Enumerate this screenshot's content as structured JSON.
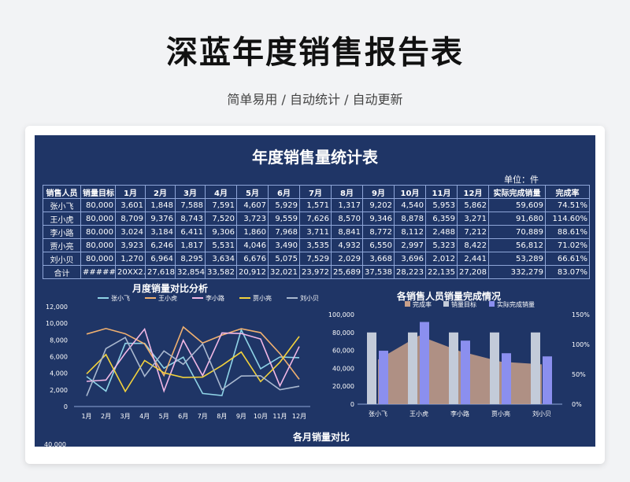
{
  "header": {
    "title": "深蓝年度销售报告表",
    "subtitle": "简单易用 / 自动统计 / 自动更新"
  },
  "sheet": {
    "title": "年度销售量统计表",
    "unit": "单位：件"
  },
  "table": {
    "headers": [
      "销售人员",
      "销量目标",
      "1月",
      "2月",
      "3月",
      "4月",
      "5月",
      "6月",
      "7月",
      "8月",
      "9月",
      "10月",
      "11月",
      "12月",
      "实际完成销量",
      "完成率"
    ],
    "rows": [
      [
        "张小飞",
        "80,000",
        "3,601",
        "1,848",
        "7,588",
        "7,591",
        "4,607",
        "5,929",
        "1,571",
        "1,317",
        "9,202",
        "4,540",
        "5,953",
        "5,862",
        "59,609",
        "74.51%"
      ],
      [
        "王小虎",
        "80,000",
        "8,709",
        "9,376",
        "8,743",
        "7,520",
        "3,723",
        "9,559",
        "7,626",
        "8,570",
        "9,346",
        "8,878",
        "6,359",
        "3,271",
        "91,680",
        "114.60%"
      ],
      [
        "李小路",
        "80,000",
        "3,024",
        "3,184",
        "6,411",
        "9,306",
        "1,860",
        "7,968",
        "3,711",
        "8,841",
        "8,772",
        "8,112",
        "2,488",
        "7,212",
        "70,889",
        "88.61%"
      ],
      [
        "贾小亮",
        "80,000",
        "3,923",
        "6,246",
        "1,817",
        "5,531",
        "4,046",
        "3,490",
        "3,535",
        "4,932",
        "6,550",
        "2,997",
        "5,323",
        "8,422",
        "56,812",
        "71.02%"
      ],
      [
        "刘小贝",
        "80,000",
        "1,270",
        "6,964",
        "8,295",
        "3,634",
        "6,676",
        "5,075",
        "7,529",
        "2,029",
        "3,668",
        "3,696",
        "2,012",
        "2,441",
        "53,289",
        "66.61%"
      ],
      [
        "合计",
        "######",
        "20XX2.0",
        "27,618",
        "32,854",
        "33,582",
        "20,912",
        "32,021",
        "23,972",
        "25,689",
        "37,538",
        "28,223",
        "22,135",
        "27,208",
        "332,279",
        "83.07%"
      ]
    ]
  },
  "colors": {
    "background": "#1f3566",
    "grid": "#8fa6d8",
    "text": "#ffffff"
  },
  "chart_data": [
    {
      "type": "line",
      "title": "月度销量对比分析",
      "categories": [
        "1月",
        "2月",
        "3月",
        "4月",
        "5月",
        "6月",
        "7月",
        "8月",
        "9月",
        "10月",
        "11月",
        "12月"
      ],
      "ylim": [
        0,
        12000
      ],
      "yticks": [
        "0",
        "2,000",
        "4,000",
        "6,000",
        "8,000",
        "10,000",
        "12,000"
      ],
      "series": [
        {
          "name": "张小飞",
          "color": "#8fd3e6",
          "values": [
            3601,
            1848,
            7588,
            7591,
            4607,
            5929,
            1571,
            1317,
            9202,
            4540,
            5953,
            5862
          ]
        },
        {
          "name": "王小虎",
          "color": "#f0b070",
          "values": [
            8709,
            9376,
            8743,
            7520,
            3723,
            9559,
            7626,
            8570,
            9346,
            8878,
            6359,
            3271
          ]
        },
        {
          "name": "李小路",
          "color": "#f2b8e6",
          "values": [
            3024,
            3184,
            6411,
            9306,
            1860,
            7968,
            3711,
            8841,
            8772,
            8112,
            2488,
            7212
          ]
        },
        {
          "name": "贾小亮",
          "color": "#f2d23c",
          "values": [
            3923,
            6246,
            1817,
            5531,
            4046,
            3490,
            3535,
            4932,
            6550,
            2997,
            5323,
            8422
          ]
        },
        {
          "name": "刘小贝",
          "color": "#a9b8cf",
          "values": [
            1270,
            6964,
            8295,
            3634,
            6676,
            5075,
            7529,
            2029,
            3668,
            3696,
            2012,
            2441
          ]
        }
      ]
    },
    {
      "type": "bar",
      "title": "各销售人员销量完成情况",
      "categories": [
        "张小飞",
        "王小虎",
        "李小路",
        "贾小亮",
        "刘小贝"
      ],
      "ylim": [
        0,
        100000
      ],
      "yticks": [
        "0",
        "20,000",
        "40,000",
        "60,000",
        "80,000",
        "100,000"
      ],
      "y2lim": [
        0,
        150
      ],
      "y2ticks": [
        "0%",
        "50%",
        "100%",
        "150%"
      ],
      "series": [
        {
          "name": "完成率",
          "type": "area",
          "color": "#c9a08a",
          "values": [
            74.51,
            114.6,
            88.61,
            71.02,
            66.61
          ]
        },
        {
          "name": "销量目标",
          "type": "bar",
          "color": "#c3cbd9",
          "values": [
            80000,
            80000,
            80000,
            80000,
            80000
          ]
        },
        {
          "name": "实际完成销量",
          "type": "bar",
          "color": "#8b8fef",
          "values": [
            59609,
            91680,
            70889,
            56812,
            53289
          ]
        }
      ]
    },
    {
      "type": "bar",
      "title": "各月销量对比",
      "ytick_visible": "40,000"
    }
  ]
}
